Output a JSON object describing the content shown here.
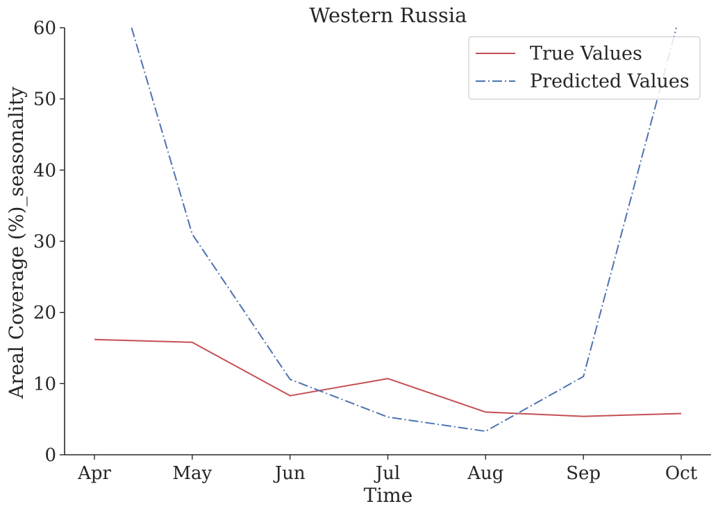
{
  "chart_data": {
    "type": "line",
    "title": "Western Russia",
    "xlabel": "Time",
    "ylabel": "Areal Coverage (%)_seasonality",
    "categories": [
      "Apr",
      "May",
      "Jun",
      "Jul",
      "Aug",
      "Sep",
      "Oct"
    ],
    "ylim": [
      0,
      60
    ],
    "yticks": [
      0,
      10,
      20,
      30,
      40,
      50,
      60
    ],
    "grid": false,
    "legend_position": "top-right",
    "series": [
      {
        "name": "True Values",
        "color": "#c44e52",
        "style": "solid",
        "x": [
          0,
          1,
          2,
          3,
          4,
          5,
          6
        ],
        "values": [
          16.2,
          15.8,
          8.3,
          10.7,
          6.0,
          5.4,
          5.8
        ]
      },
      {
        "name": "Predicted Values",
        "color": "#4c72b0",
        "style": "dashdot",
        "x": [
          0.38,
          1,
          2,
          3,
          4,
          5,
          5.95
        ],
        "values": [
          60,
          31.0,
          10.6,
          5.3,
          3.3,
          11.0,
          60
        ]
      }
    ]
  }
}
